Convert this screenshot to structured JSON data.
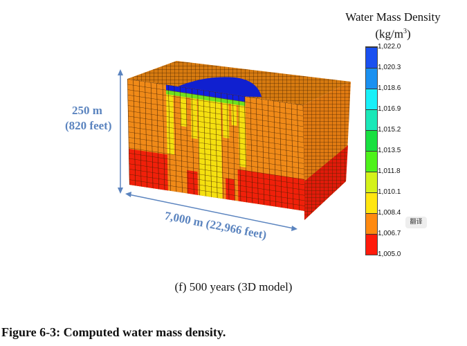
{
  "legend": {
    "title": "Water Mass Density",
    "unit_base": "(kg/m",
    "unit_sup": "3",
    "unit_close": ")",
    "ticks": [
      "1,022.0",
      "1,020.3",
      "1,018.6",
      "1,016.9",
      "1,015.2",
      "1,013.5",
      "1,011.8",
      "1,010.1",
      "1,008.4",
      "1,006.7",
      "1,005.0"
    ],
    "colors": [
      "#ff1a0a",
      "#ff8a10",
      "#ffe610",
      "#d4f21a",
      "#4ef21a",
      "#18e040",
      "#1ae8b8",
      "#18f0f8",
      "#1a90f0",
      "#1a50f0",
      "#1010f0"
    ]
  },
  "dimensions": {
    "height_m": "250 m",
    "height_ft": "(820 feet)",
    "length": "7,000 m (22,966 feet)"
  },
  "caption": "(f)  500 years (3D model)",
  "figure_caption": "Figure 6-3: Computed water mass density.",
  "translate_button": "翻译"
}
